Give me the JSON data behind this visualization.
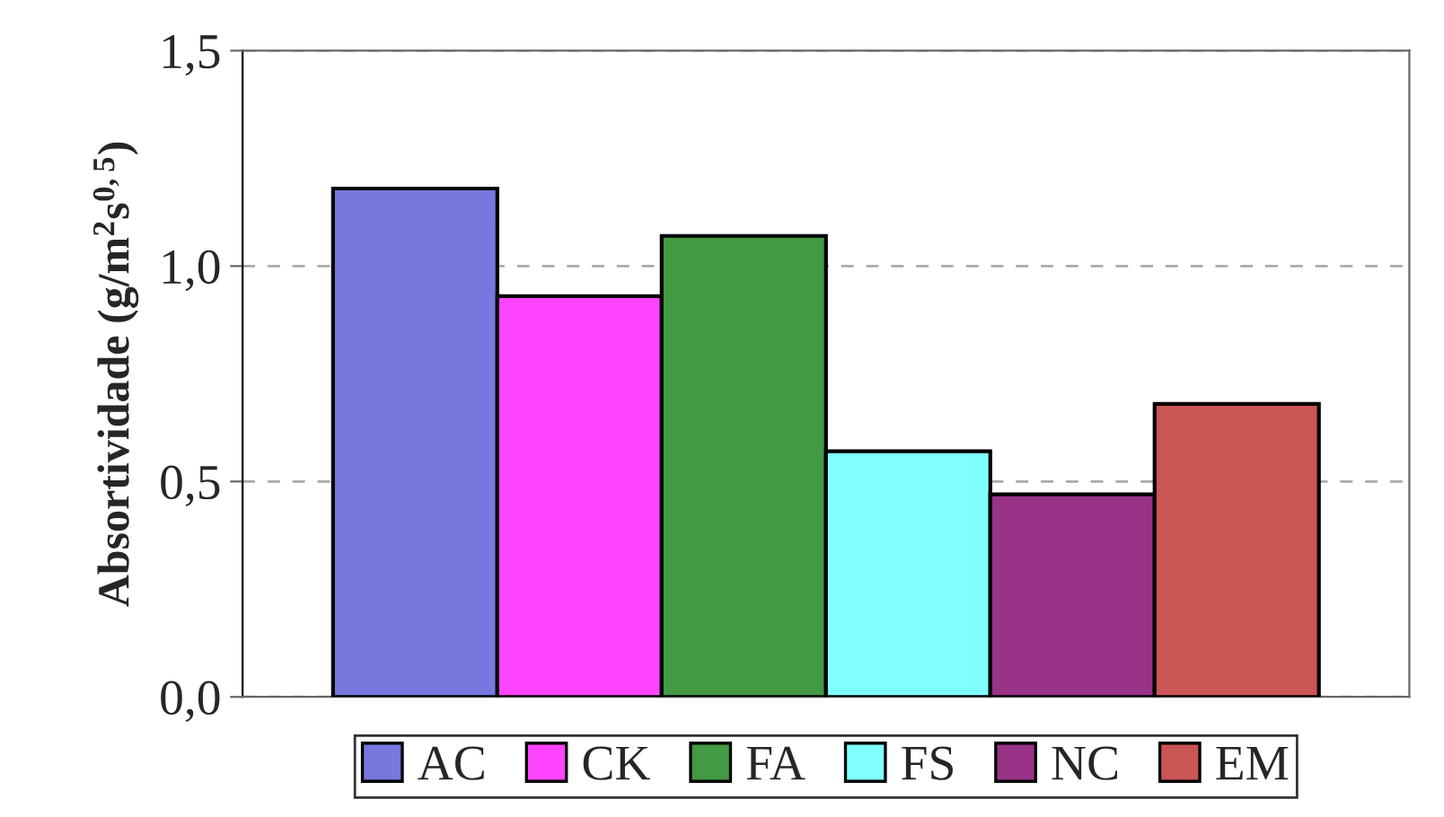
{
  "chart_data": {
    "type": "bar",
    "ylabel": "Absortividade (g/m$^{2}$s$^{0,5}$)",
    "categories": [
      null
    ],
    "series": [
      {
        "name": "AC",
        "color": "#7777dd",
        "values": [
          1.18
        ]
      },
      {
        "name": "CK",
        "color": "#ff44ff",
        "values": [
          0.93
        ]
      },
      {
        "name": "FA",
        "color": "#449944",
        "values": [
          1.07
        ]
      },
      {
        "name": "FS",
        "color": "#80ffff",
        "values": [
          0.57
        ]
      },
      {
        "name": "NC",
        "color": "#993388",
        "values": [
          0.47
        ]
      },
      {
        "name": "EM",
        "color": "#cc5555",
        "values": [
          0.68
        ]
      }
    ],
    "ylim": [
      0,
      1.5
    ],
    "yticks": [
      {
        "value": 0,
        "label": "0,0"
      },
      {
        "value": 0.5,
        "label": "0,5"
      },
      {
        "value": 1.0,
        "label": "1,0"
      },
      {
        "value": 1.5,
        "label": "1,5"
      }
    ],
    "grid": "y",
    "legend": "bottom"
  }
}
